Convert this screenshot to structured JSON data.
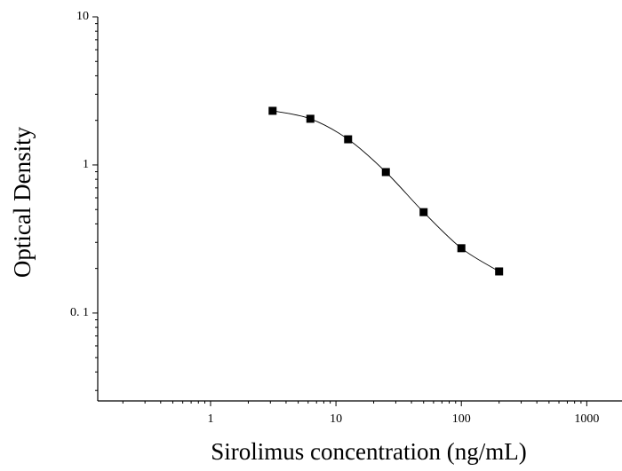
{
  "chart_data": {
    "type": "scatter",
    "x_label": "Sirolimus concentration (ng/mL)",
    "y_label": "Optical Density",
    "x": [
      3.125,
      6.25,
      12.5,
      25,
      50,
      100,
      200
    ],
    "values": [
      2.32,
      2.05,
      1.49,
      0.895,
      0.48,
      0.274,
      0.191
    ],
    "color": "#000000",
    "xlog": true,
    "ylog": true,
    "xlim": [
      0.126,
      1910
    ],
    "ylim": [
      0.0255,
      10
    ],
    "xticks": [
      1,
      10,
      100,
      1000
    ],
    "yticks": [
      {
        "value": 0.1,
        "label": "0. 1"
      },
      1,
      10
    ],
    "fit_line": true
  }
}
